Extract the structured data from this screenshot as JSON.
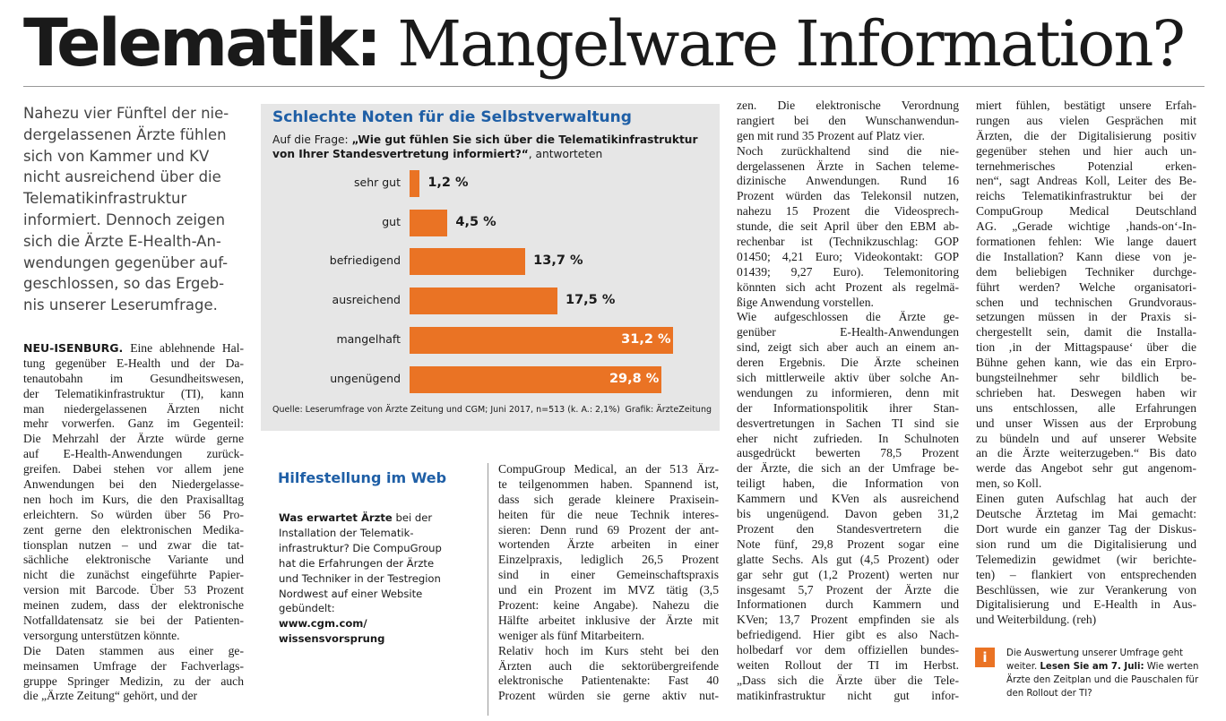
{
  "headline": {
    "bold": "Telematik:",
    "light": " Mangelware Information?"
  },
  "teaser_lines": [
    "Nahezu vier Fünftel der nie-",
    "dergelassenen Ärzte fühlen",
    "sich von Kammer und KV",
    "nicht ausreichend über die",
    "Telematikinfrastruktur",
    "informiert. Dennoch zeigen",
    "sich die Ärzte E-Health-An-",
    "wendungen gegenüber auf-",
    "geschlossen, so das Ergeb-",
    "nis unserer Leserumfrage."
  ],
  "col1": {
    "dateline": "NEU-ISENBURG.",
    "lines": [
      " Eine ablehnende Hal-",
      "tung gegenüber E-Health und der Da-",
      "tenautobahn im Gesundheitswesen,",
      "der Telematikinfrastruktur (TI), kann",
      "man niedergelassenen Ärzten nicht",
      "mehr vorwerfen. Ganz im Gegenteil:",
      "Die Mehrzahl der Ärzte würde gerne",
      "auf E-Health-Anwendungen zurück-",
      "greifen. Dabei stehen vor allem jene",
      "Anwendungen bei den Niedergelasse-",
      "nen hoch im Kurs, die den Praxisalltag",
      "erleichtern. So würden über 56 Pro-",
      "zent gerne den elektronischen Medika-",
      "tionsplan nutzen – und zwar die tat-",
      "sächliche elektronische Variante und",
      "nicht die zunächst eingeführte Papier-",
      "version mit Barcode. Über 53 Prozent",
      "meinen zudem, dass der elektronische",
      "Notfalldatensatz sie bei der Patienten-",
      "versorgung unterstützen könnte.",
      "    Die Daten stammen aus einer ge-",
      "meinsamen Umfrage der Fachverlags-",
      "gruppe Springer Medizin, zu der auch",
      "die „Ärzte Zeitung“ gehört, und der"
    ]
  },
  "chart_data": {
    "type": "bar",
    "orientation": "horizontal",
    "title": "Schlechte Noten für die Selbstverwaltung",
    "question_prefix": "Auf die Frage: ",
    "question_bold": "„Wie gut fühlen Sie sich über die Telematikinfrastruktur von Ihrer Standesvertretung informiert?“",
    "question_suffix": ", antworteten",
    "categories": [
      "sehr gut",
      "gut",
      "befriedigend",
      "ausreichend",
      "mangelhaft",
      "ungenügend"
    ],
    "values": [
      1.2,
      4.5,
      13.7,
      17.5,
      31.2,
      29.8
    ],
    "value_labels": [
      "1,2 %",
      "4,5 %",
      "13,7 %",
      "17,5 %",
      "31,2 %",
      "29,8 %"
    ],
    "xlim": [
      0,
      35
    ],
    "source": "Quelle: Leserumfrage von Ärzte Zeitung und CGM; Juni 2017, n=513 (k. A.: 2,1%)",
    "credit": "Grafik: ÄrzteZeitung",
    "bar_color": "#ea7324",
    "title_color": "#1f5fa6"
  },
  "webbox": {
    "title": "Hilfestellung im Web",
    "line1_bold": "Was erwartet Ärzte",
    "line1_rest": " bei der",
    "lines": [
      "Installation der Telematik-",
      "infrastruktur? Die CompuGroup",
      "hat die Erfahrungen der Ärzte",
      "und Techniker in der Testregion",
      "Nordwest auf einer Website",
      "gebündelt:"
    ],
    "url_lines": [
      "www.cgm.com/",
      "wissensvorsprung"
    ]
  },
  "col2": {
    "lines": [
      "CompuGroup Medical, an der 513 Ärz-",
      "te teilgenommen haben. Spannend ist,",
      "dass sich gerade kleinere Praxisein-",
      "heiten für die neue Technik interes-",
      "sieren: Denn rund 69 Prozent der ant-",
      "wortenden Ärzte arbeiten in einer",
      "Einzelpraxis, lediglich 26,5 Prozent",
      "sind in einer Gemeinschaftspraxis",
      "und ein Prozent im MVZ tätig (3,5",
      "Prozent: keine Angabe). Nahezu die",
      "Hälfte arbeitet inklusive der Ärzte mit",
      "weniger als fünf Mitarbeitern.",
      "    Relativ hoch im Kurs steht bei den",
      "Ärzten auch die sektorübergreifende",
      "elektronische Patientenakte: Fast 40",
      "Prozent würden sie gerne aktiv nut-"
    ]
  },
  "col3": {
    "lines": [
      "zen. Die elektronische Verordnung",
      "rangiert bei den Wunschanwendun-",
      "gen mit rund 35 Prozent auf Platz vier.",
      "    Noch zurückhaltend sind die nie-",
      "dergelassenen Ärzte in Sachen teleme-",
      "dizinische Anwendungen. Rund 16",
      "Prozent würden das Telekonsil nutzen,",
      "nahezu 15 Prozent die Videosprech-",
      "stunde, die seit April über den EBM ab-",
      "rechenbar ist (Technikzuschlag: GOP",
      "01450; 4,21 Euro; Videokontakt: GOP",
      "01439; 9,27 Euro). Telemonitoring",
      "könnten sich acht Prozent als regelmä-",
      "ßige Anwendung vorstellen.",
      "    Wie aufgeschlossen die Ärzte ge-",
      "genüber    E-Health-Anwendungen",
      "sind, zeigt sich aber auch an einem an-",
      "deren Ergebnis. Die Ärzte scheinen",
      "sich mittlerweile aktiv über solche An-",
      "wendungen zu informieren, denn mit",
      "der Informationspolitik ihrer Stan-",
      "desvertretungen in Sachen TI sind sie",
      "eher nicht zufrieden. In Schulnoten",
      "ausgedrückt bewerten 78,5 Prozent",
      "der Ärzte, die sich an der Umfrage be-",
      "teiligt haben, die Information von",
      "Kammern und KVen als ausreichend",
      "bis ungenügend. Davon geben 31,2",
      "Prozent den Standesvertretern die",
      "Note fünf, 29,8 Prozent sogar eine",
      "glatte Sechs. Als gut (4,5 Prozent) oder",
      "gar sehr gut (1,2 Prozent) werten nur",
      "insgesamt 5,7 Prozent der Ärzte die",
      "Informationen durch Kammern und",
      "KVen; 13,7 Prozent empfinden sie als",
      "befriedigend. Hier gibt es also Nach-",
      "holbedarf vor dem offiziellen bundes-",
      "weiten Rollout der TI im Herbst.",
      "    „Dass sich die Ärzte über die Tele-",
      "matikinfrastruktur nicht gut infor-"
    ]
  },
  "col4": {
    "lines": [
      "miert fühlen, bestätigt unsere Erfah-",
      "rungen aus vielen Gesprächen mit",
      "Ärzten, die der Digitalisierung positiv",
      "gegenüber stehen und hier auch un-",
      "ternehmerisches Potenzial erken-",
      "nen“, sagt Andreas Koll, Leiter des Be-",
      "reichs Telematikinfrastruktur bei der",
      "CompuGroup Medical Deutschland",
      "AG. „Gerade wichtige ‚hands-on‘-In-",
      "formationen fehlen: Wie lange dauert",
      "die Installation? Kann diese von je-",
      "dem beliebigen Techniker durchge-",
      "führt werden? Welche organisatori-",
      "schen und technischen Grundvoraus-",
      "setzungen müssen in der Praxis si-",
      "chergestellt sein, damit die Installa-",
      "tion ‚in der Mittagspause‘ über die",
      "Bühne gehen kann, wie das ein Erpro-",
      "bungsteilnehmer sehr bildlich be-",
      "schrieben hat. Deswegen haben wir",
      "uns entschlossen, alle Erfahrungen",
      "und unser Wissen aus der Erprobung",
      "zu bündeln und auf unserer Website",
      "an die Ärzte weiterzugeben.“ Bis dato",
      "werde das Angebot sehr gut angenom-",
      "men, so Koll.",
      "    Einen guten Aufschlag hat auch der",
      "Deutsche Ärztetag im Mai gemacht:",
      "Dort wurde ein ganzer Tag der Diskus-",
      "sion rund um die Digitalisierung und",
      "Telemedizin gewidmet (wir berichte-",
      "ten) – flankiert von entsprechenden",
      "Beschlüssen, wie zur Verankerung von",
      "Digitalisierung und E-Health in Aus-",
      "und Weiterbildung. (reh)"
    ]
  },
  "infobox": {
    "icon": "i",
    "line1": "Die Auswertung unserer Umfrage geht",
    "line2_pre": "weiter. ",
    "line2_bold": "Lesen Sie am 7. Juli:",
    "line2_post": " Wie werten",
    "line3": "Ärzte den Zeitplan und die Pauschalen für",
    "line4": "den Rollout der TI?"
  }
}
